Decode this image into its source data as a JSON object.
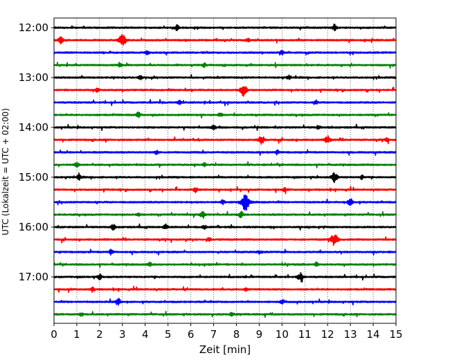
{
  "chart_data": {
    "type": "line",
    "title": "",
    "xlabel": "Zeit  [min]",
    "ylabel": "UTC (Lokalzeit = UTC + 02:00)",
    "xlim": [
      0,
      15
    ],
    "x_ticks": [
      0,
      1,
      2,
      3,
      4,
      5,
      6,
      7,
      8,
      9,
      10,
      11,
      12,
      13,
      14,
      15
    ],
    "x_tick_labels": [
      "0",
      "1",
      "2",
      "3",
      "4",
      "5",
      "6",
      "7",
      "8",
      "9",
      "10",
      "11",
      "12",
      "13",
      "14",
      "15"
    ],
    "grid": "vertical dotted at each minute",
    "y_tick_labels": [
      "12:00",
      "13:00",
      "14:00",
      "15:00",
      "16:00",
      "17:00"
    ],
    "y_tick_trace_index": [
      0,
      4,
      8,
      12,
      16,
      20
    ],
    "trace_interval_minutes": 15,
    "color_cycle": [
      "#000000",
      "#ff0000",
      "#0000ff",
      "#008000"
    ],
    "traces": [
      {
        "start": "12:00",
        "bursts": [
          [
            5.4,
            0.4
          ],
          [
            12.3,
            0.5
          ]
        ]
      },
      {
        "start": "12:15",
        "bursts": [
          [
            0.3,
            0.5
          ],
          [
            3.0,
            1.0
          ],
          [
            8.5,
            0.3
          ]
        ]
      },
      {
        "start": "12:30",
        "bursts": [
          [
            4.1,
            0.3
          ],
          [
            10.0,
            0.3
          ]
        ]
      },
      {
        "start": "12:45",
        "bursts": [
          [
            2.9,
            0.3
          ],
          [
            6.6,
            0.3
          ]
        ]
      },
      {
        "start": "13:00",
        "bursts": [
          [
            3.8,
            0.3
          ],
          [
            10.3,
            0.3
          ]
        ]
      },
      {
        "start": "13:15",
        "bursts": [
          [
            1.9,
            0.3
          ],
          [
            8.3,
            0.9
          ]
        ]
      },
      {
        "start": "13:30",
        "bursts": [
          [
            5.5,
            0.3
          ],
          [
            11.5,
            0.3
          ]
        ]
      },
      {
        "start": "13:45",
        "bursts": [
          [
            3.7,
            0.4
          ],
          [
            7.3,
            0.3
          ]
        ]
      },
      {
        "start": "14:00",
        "bursts": [
          [
            7.0,
            0.4
          ],
          [
            11.6,
            0.3
          ]
        ]
      },
      {
        "start": "14:15",
        "bursts": [
          [
            9.1,
            0.7
          ],
          [
            12.0,
            0.6
          ],
          [
            14.6,
            0.3
          ]
        ]
      },
      {
        "start": "14:30",
        "bursts": [
          [
            4.5,
            0.3
          ],
          [
            9.8,
            0.3
          ]
        ]
      },
      {
        "start": "14:45",
        "bursts": [
          [
            1.0,
            0.4
          ],
          [
            6.6,
            0.3
          ]
        ]
      },
      {
        "start": "15:00",
        "bursts": [
          [
            1.1,
            0.4
          ],
          [
            12.3,
            0.8
          ],
          [
            13.5,
            0.3
          ]
        ]
      },
      {
        "start": "15:15",
        "bursts": [
          [
            6.2,
            0.4
          ],
          [
            10.1,
            0.3
          ]
        ]
      },
      {
        "start": "15:30",
        "bursts": [
          [
            8.4,
            1.3
          ],
          [
            13.0,
            0.6
          ],
          [
            7.4,
            0.3
          ]
        ]
      },
      {
        "start": "15:45",
        "bursts": [
          [
            6.5,
            0.5
          ],
          [
            8.2,
            0.5
          ],
          [
            3.7,
            0.3
          ]
        ]
      },
      {
        "start": "16:00",
        "bursts": [
          [
            2.6,
            0.4
          ],
          [
            4.9,
            0.4
          ],
          [
            6.6,
            0.3
          ]
        ]
      },
      {
        "start": "16:15",
        "bursts": [
          [
            6.8,
            0.3
          ],
          [
            12.3,
            1.0
          ]
        ]
      },
      {
        "start": "16:30",
        "bursts": [
          [
            2.5,
            0.4
          ],
          [
            9.0,
            0.3
          ]
        ]
      },
      {
        "start": "16:45",
        "bursts": [
          [
            4.2,
            0.3
          ],
          [
            11.5,
            0.3
          ]
        ]
      },
      {
        "start": "17:00",
        "bursts": [
          [
            2.0,
            0.4
          ],
          [
            10.8,
            0.7
          ]
        ]
      },
      {
        "start": "17:15",
        "bursts": [
          [
            8.4,
            0.3
          ],
          [
            1.7,
            0.3
          ]
        ]
      },
      {
        "start": "17:30",
        "bursts": [
          [
            2.8,
            0.6
          ],
          [
            10.0,
            0.3
          ]
        ]
      },
      {
        "start": "17:45",
        "bursts": [
          [
            1.2,
            0.3
          ],
          [
            7.8,
            0.3
          ]
        ]
      }
    ]
  }
}
